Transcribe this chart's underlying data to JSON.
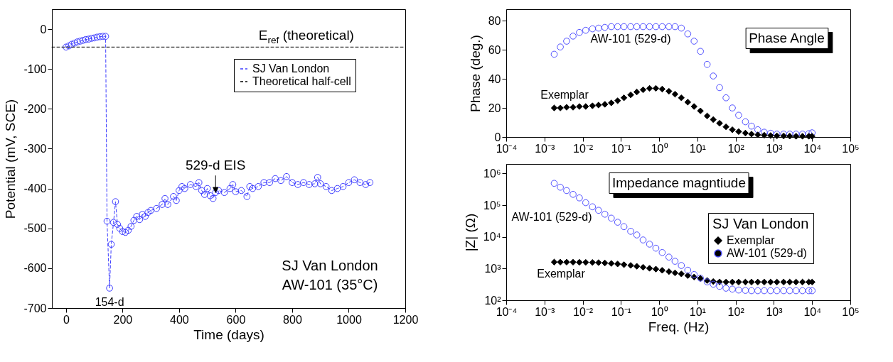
{
  "chart_data": [
    {
      "type": "line",
      "xlabel": "Time (days)",
      "ylabel": "Potential (mV, SCE)",
      "xlim": [
        -50,
        1200
      ],
      "ylim": [
        -700,
        50
      ],
      "xticks": [
        0,
        200,
        400,
        600,
        800,
        1000,
        1200
      ],
      "yticks": [
        -700,
        -600,
        -500,
        -400,
        -300,
        -200,
        -100,
        0
      ],
      "legend": "top right",
      "x": [
        0,
        10,
        20,
        30,
        40,
        50,
        60,
        70,
        80,
        90,
        100,
        110,
        120,
        130,
        140,
        145,
        154,
        160,
        168,
        175,
        182,
        190,
        200,
        210,
        220,
        230,
        240,
        250,
        260,
        270,
        280,
        290,
        300,
        320,
        340,
        350,
        360,
        380,
        390,
        400,
        410,
        420,
        440,
        460,
        470,
        480,
        490,
        500,
        510,
        520,
        529,
        540,
        560,
        580,
        590,
        600,
        620,
        640,
        650,
        660,
        680,
        700,
        720,
        740,
        760,
        780,
        800,
        820,
        840,
        860,
        880,
        890,
        900,
        920,
        940,
        960,
        980,
        1000,
        1020,
        1040,
        1060,
        1075
      ],
      "series": [
        {
          "name": "SJ Van London",
          "color": "#3d3dff",
          "marker": "circle",
          "line_style": "dashed",
          "values": [
            -45,
            -42,
            -38,
            -35,
            -32,
            -30,
            -28,
            -26,
            -25,
            -23,
            -22,
            -20,
            -19,
            -18,
            -18,
            -482,
            -650,
            -540,
            -485,
            -433,
            -490,
            -500,
            -508,
            -510,
            -505,
            -495,
            -480,
            -470,
            -478,
            -465,
            -470,
            -460,
            -455,
            -450,
            -440,
            -425,
            -440,
            -420,
            -430,
            -405,
            -395,
            -400,
            -390,
            -395,
            -385,
            -405,
            -415,
            -400,
            -418,
            -425,
            -410,
            -405,
            -410,
            -400,
            -390,
            -408,
            -405,
            -420,
            -395,
            -400,
            -395,
            -385,
            -385,
            -375,
            -380,
            -370,
            -385,
            -390,
            -385,
            -390,
            -388,
            -372,
            -388,
            -395,
            -405,
            -400,
            -395,
            -385,
            -378,
            -385,
            -390,
            -385
          ]
        },
        {
          "name": "Theoretical half-cell",
          "color": "#000000",
          "marker": "none",
          "line_style": "dashed",
          "x": [
            -50,
            1200
          ],
          "values": [
            -45,
            -45
          ]
        }
      ],
      "annotations": [
        {
          "text": "529-d EIS",
          "x": 529,
          "y": -410
        },
        {
          "text": "154-d",
          "x": 154,
          "y": -650
        },
        "SJ Van London",
        "AW-101 (35°C)",
        {
          "text": "E$_{ref}$ (theoretical)",
          "x": 850,
          "y": -45
        }
      ]
    },
    {
      "type": "scatter",
      "title": "Phase Angle",
      "ylabel": "Phase (deg.)",
      "log": "x",
      "xlim": [
        0.0001,
        100000
      ],
      "ylim": [
        0,
        88
      ],
      "xticks": [
        {
          "value": 0.0001,
          "label": "10⁻⁴"
        },
        {
          "value": 0.001,
          "label": "10⁻³"
        },
        {
          "value": 0.01,
          "label": "10⁻²"
        },
        {
          "value": 0.1,
          "label": "10⁻¹"
        },
        {
          "value": 1,
          "label": "10⁰"
        },
        {
          "value": 10,
          "label": "10¹"
        },
        {
          "value": 100,
          "label": "10²"
        },
        {
          "value": 1000,
          "label": "10³"
        },
        {
          "value": 10000,
          "label": "10⁴"
        },
        {
          "value": 100000,
          "label": "10⁵"
        }
      ],
      "yticks": [
        0,
        20,
        40,
        60,
        80
      ],
      "x": [
        0.0018,
        0.0026,
        0.0038,
        0.0056,
        0.0082,
        0.012,
        0.018,
        0.026,
        0.038,
        0.056,
        0.082,
        0.12,
        0.18,
        0.26,
        0.38,
        0.56,
        0.82,
        1.2,
        1.8,
        2.6,
        3.8,
        5.6,
        8.2,
        12,
        18,
        26,
        38,
        56,
        82,
        120,
        180,
        260,
        380,
        560,
        820,
        1200,
        1800,
        2600,
        3800,
        5600,
        8200,
        10000
      ],
      "series": [
        {
          "name": "AW-101 (529-d)",
          "color": "#4f4fff",
          "marker": "circle",
          "values": [
            57,
            62,
            66,
            69.5,
            72,
            73.5,
            74.5,
            75,
            75.5,
            76,
            76,
            76,
            76,
            76,
            76,
            76,
            76,
            76,
            76,
            76,
            75,
            71,
            66,
            59,
            50,
            42,
            34,
            27,
            20,
            15,
            10.5,
            7.5,
            5,
            3.3,
            2.6,
            2,
            2,
            2,
            2,
            2,
            2.3,
            2.9
          ]
        },
        {
          "name": "Exemplar",
          "color": "#000000",
          "marker": "diamond",
          "values": [
            20,
            20,
            20.5,
            20.5,
            21,
            21,
            21.5,
            22,
            22.5,
            23.5,
            25,
            27,
            29,
            31,
            32.5,
            33.5,
            33.5,
            33,
            31.5,
            29.5,
            27,
            24,
            21,
            18,
            14.5,
            12,
            9.5,
            7,
            5,
            3.7,
            2.7,
            2,
            1.5,
            1.2,
            1,
            0.8,
            0.7,
            0.6,
            0.5,
            0.5,
            0.5,
            0.5
          ]
        }
      ]
    },
    {
      "type": "scatter",
      "title": "Impedance magntiude",
      "xlabel": "Freq. (Hz)",
      "ylabel": "|Z| (Ω)",
      "log": "xy",
      "xlim": [
        0.0001,
        100000
      ],
      "ylim": [
        100,
        2000000
      ],
      "legend": "bottom right",
      "legend_title": "SJ Van London",
      "xticks": [
        {
          "value": 0.0001,
          "label": "10⁻⁴"
        },
        {
          "value": 0.001,
          "label": "10⁻³"
        },
        {
          "value": 0.01,
          "label": "10⁻²"
        },
        {
          "value": 0.1,
          "label": "10⁻¹"
        },
        {
          "value": 1,
          "label": "10⁰"
        },
        {
          "value": 10,
          "label": "10¹"
        },
        {
          "value": 100,
          "label": "10²"
        },
        {
          "value": 1000,
          "label": "10³"
        },
        {
          "value": 10000,
          "label": "10⁴"
        },
        {
          "value": 100000,
          "label": "10⁵"
        }
      ],
      "yticks": [
        {
          "value": 100,
          "label": "10²"
        },
        {
          "value": 1000,
          "label": "10³"
        },
        {
          "value": 10000,
          "label": "10⁴"
        },
        {
          "value": 100000,
          "label": "10⁵"
        },
        {
          "value": 1000000,
          "label": "10⁶"
        }
      ],
      "x": [
        0.0018,
        0.0026,
        0.0038,
        0.0056,
        0.0082,
        0.012,
        0.018,
        0.026,
        0.038,
        0.056,
        0.082,
        0.12,
        0.18,
        0.26,
        0.38,
        0.56,
        0.82,
        1.2,
        1.8,
        2.6,
        3.8,
        5.6,
        8.2,
        12,
        18,
        26,
        38,
        56,
        82,
        120,
        180,
        260,
        380,
        560,
        820,
        1200,
        1800,
        2600,
        3800,
        5600,
        8200,
        10000
      ],
      "series": [
        {
          "name": "Exemplar",
          "color": "#000000",
          "marker": "diamond",
          "values": [
            1600,
            1600,
            1600,
            1590,
            1580,
            1570,
            1560,
            1540,
            1500,
            1450,
            1400,
            1330,
            1260,
            1180,
            1100,
            1020,
            960,
            880,
            800,
            730,
            680,
            600,
            540,
            490,
            420,
            390,
            380,
            375,
            375,
            375,
            375,
            375,
            375,
            375,
            375,
            375,
            375,
            375,
            375,
            375,
            375,
            375
          ]
        },
        {
          "name": "AW-101 (529-d)",
          "color": "#4f4fff",
          "marker": "circle",
          "values": [
            490000,
            370000,
            290000,
            220000,
            170000,
            120000,
            89000,
            69000,
            52000,
            39000,
            29000,
            21000,
            15000,
            11500,
            8000,
            5900,
            4400,
            3200,
            2300,
            1700,
            1250,
            890,
            650,
            500,
            380,
            320,
            275,
            240,
            225,
            210,
            205,
            200,
            200,
            200,
            200,
            200,
            200,
            200,
            200,
            200,
            200,
            200
          ]
        }
      ]
    }
  ]
}
